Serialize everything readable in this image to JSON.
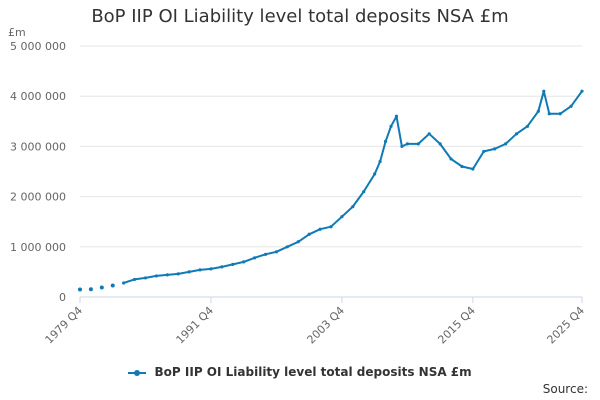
{
  "chart_data": {
    "type": "line",
    "title": "BoP IIP OI Liability level total deposits NSA £m",
    "unit_label": "£m",
    "xlabel": "",
    "ylabel": "",
    "ylim": [
      0,
      5000000
    ],
    "yticks": [
      0,
      1000000,
      2000000,
      3000000,
      4000000,
      5000000
    ],
    "ytick_labels": [
      "0",
      "1 000 000",
      "2 000 000",
      "3 000 000",
      "4 000 000",
      "5 000 000"
    ],
    "xticks": [
      1979.75,
      1991.75,
      2003.75,
      2015.75,
      2025.75
    ],
    "xtick_labels": [
      "1979 Q4",
      "1991 Q4",
      "2003 Q4",
      "2015 Q4",
      "2025 Q4"
    ],
    "xlim": [
      1979.75,
      2025.75
    ],
    "grid": true,
    "legend_position": "bottom",
    "series_color": "#0f7ab6",
    "series": [
      {
        "name": "BoP IIP OI Liability level total deposits NSA £m",
        "sparse_points": [
          [
            1979.75,
            150000
          ],
          [
            1980.75,
            155000
          ],
          [
            1981.75,
            190000
          ],
          [
            1982.75,
            230000
          ]
        ],
        "x": [
          1983.75,
          1984.75,
          1985.75,
          1986.75,
          1987.75,
          1988.75,
          1989.75,
          1990.75,
          1991.75,
          1992.75,
          1993.75,
          1994.75,
          1995.75,
          1996.75,
          1997.75,
          1998.75,
          1999.75,
          2000.75,
          2001.75,
          2002.75,
          2003.75,
          2004.75,
          2005.75,
          2006.75,
          2007.25,
          2007.75,
          2008.25,
          2008.75,
          2009.25,
          2009.75,
          2010.75,
          2011.75,
          2012.75,
          2013.75,
          2014.75,
          2015.75,
          2016.75,
          2017.75,
          2018.75,
          2019.75,
          2020.75,
          2021.75,
          2022.25,
          2022.75,
          2023.75,
          2024.75,
          2025.75
        ],
        "values": [
          280000,
          350000,
          380000,
          420000,
          440000,
          460000,
          500000,
          540000,
          560000,
          600000,
          650000,
          700000,
          780000,
          850000,
          900000,
          1000000,
          1100000,
          1250000,
          1350000,
          1400000,
          1600000,
          1800000,
          2100000,
          2450000,
          2700000,
          3100000,
          3400000,
          3600000,
          3000000,
          3050000,
          3050000,
          3250000,
          3050000,
          2750000,
          2600000,
          2550000,
          2900000,
          2950000,
          3050000,
          3250000,
          3400000,
          3700000,
          4100000,
          3650000,
          3650000,
          3800000,
          4100000
        ]
      }
    ]
  },
  "legend": {
    "label": "BoP IIP OI Liability level total deposits NSA £m"
  },
  "source": {
    "label": "Source:"
  }
}
